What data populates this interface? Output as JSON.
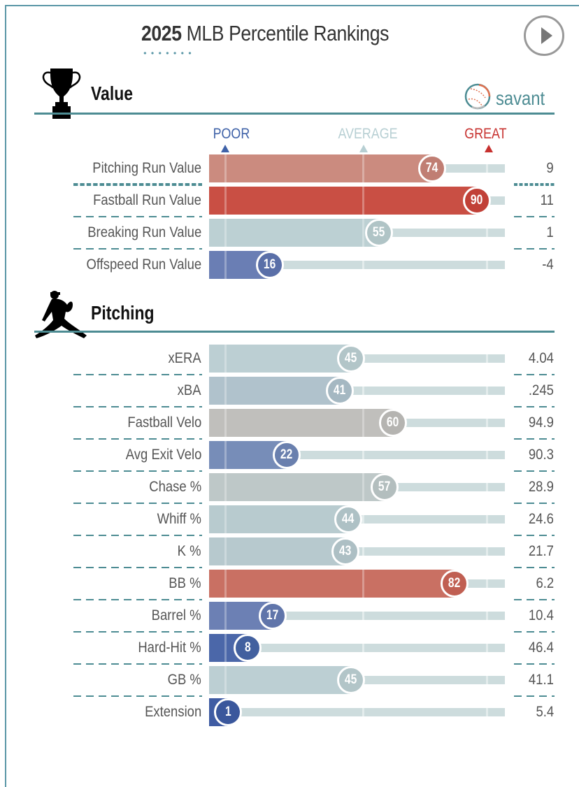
{
  "header": {
    "title_year": "2025",
    "title_rest": " MLB Percentile Rankings",
    "play_icon": "play-circle-icon"
  },
  "brand": {
    "name": "savant",
    "icon": "baseball-icon",
    "color": "#4d8c93"
  },
  "scale": {
    "poor": {
      "label": "POOR",
      "color": "#3f62a8"
    },
    "average": {
      "label": "AVERAGE",
      "color": "#b7cfd3"
    },
    "great": {
      "label": "GREAT",
      "color": "#c7312f"
    }
  },
  "sections": [
    {
      "title": "Value",
      "icon": "trophy-icon",
      "rows": [
        {
          "label": "Pitching Run Value",
          "percentile": 74,
          "value": "9",
          "color": "#cb8b7f",
          "bubble": "#c07e73",
          "sep": "fine"
        },
        {
          "label": "Fastball Run Value",
          "percentile": 90,
          "value": "11",
          "color": "#c94f44",
          "bubble": "#c14037",
          "sep": "dash"
        },
        {
          "label": "Breaking Run Value",
          "percentile": 55,
          "value": "1",
          "color": "#bcd0d3",
          "bubble": "#b0c4c6",
          "sep": "dash"
        },
        {
          "label": "Offspeed Run Value",
          "percentile": 16,
          "value": "-4",
          "color": "#6a7eb4",
          "bubble": "#5a6fa8",
          "sep": "none"
        }
      ]
    },
    {
      "title": "Pitching",
      "icon": "pitcher-icon",
      "rows": [
        {
          "label": "xERA",
          "percentile": 45,
          "value": "4.04",
          "color": "#bccfd3",
          "bubble": "#b2c5c8",
          "sep": "dash"
        },
        {
          "label": "xBA",
          "percentile": 41,
          "value": ".245",
          "color": "#b0c2cc",
          "bubble": "#a5b8c2",
          "sep": "dash"
        },
        {
          "label": "Fastball Velo",
          "percentile": 60,
          "value": "94.9",
          "color": "#c0bfbc",
          "bubble": "#b5b4b1",
          "sep": "dash"
        },
        {
          "label": "Avg Exit Velo",
          "percentile": 22,
          "value": "90.3",
          "color": "#778db8",
          "bubble": "#6a80ae",
          "sep": "dash"
        },
        {
          "label": "Chase %",
          "percentile": 57,
          "value": "28.9",
          "color": "#bec8c8",
          "bubble": "#b3bebe",
          "sep": "dash"
        },
        {
          "label": "Whiff %",
          "percentile": 44,
          "value": "24.6",
          "color": "#b8cbcf",
          "bubble": "#aec1c5",
          "sep": "dash"
        },
        {
          "label": "K %",
          "percentile": 43,
          "value": "21.7",
          "color": "#b7c9ce",
          "bubble": "#adbfc4",
          "sep": "dash"
        },
        {
          "label": "BB %",
          "percentile": 82,
          "value": "6.2",
          "color": "#c97063",
          "bubble": "#c05f52",
          "sep": "dash"
        },
        {
          "label": "Barrel %",
          "percentile": 17,
          "value": "10.4",
          "color": "#6c80b4",
          "bubble": "#6075aa",
          "sep": "dash"
        },
        {
          "label": "Hard-Hit %",
          "percentile": 8,
          "value": "46.4",
          "color": "#4b67a9",
          "bubble": "#42609f",
          "sep": "dash"
        },
        {
          "label": "GB %",
          "percentile": 45,
          "value": "41.1",
          "color": "#bccfd3",
          "bubble": "#b2c5c8",
          "sep": "dash"
        },
        {
          "label": "Extension",
          "percentile": 1,
          "value": "5.4",
          "color": "#3f5ca3",
          "bubble": "#3a579c",
          "sep": "none"
        }
      ]
    }
  ]
}
